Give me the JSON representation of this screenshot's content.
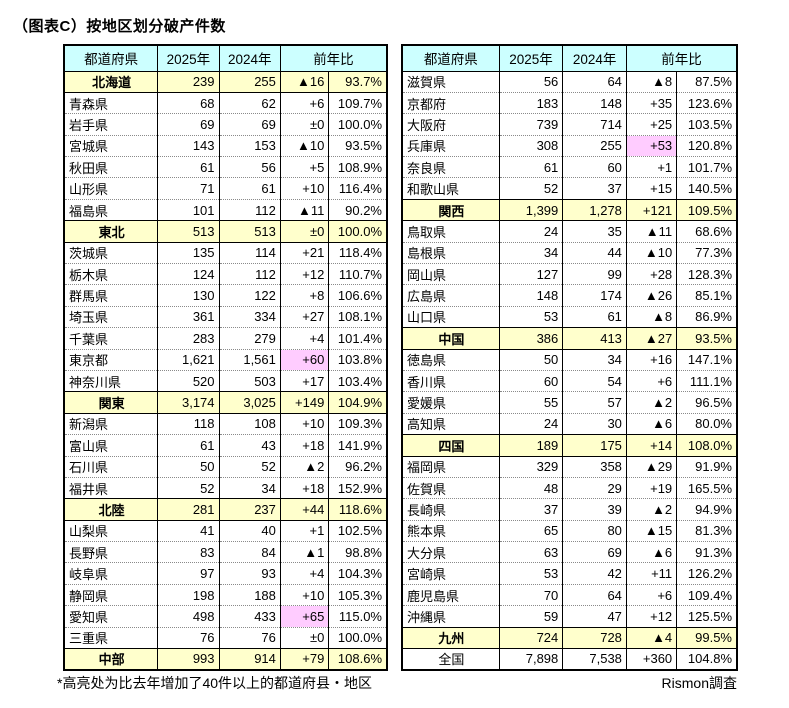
{
  "title": "（图表C）按地区划分破产件数",
  "footnote": "*高亮处为比去年增加了40件以上的都道府县・地区",
  "source": "Rismon調査",
  "colors": {
    "header_bg": "#CCFFFF",
    "region_row_bg": "#FFFFCC",
    "highlight_bg": "#FFCCFF",
    "border": "#000000"
  },
  "headers": {
    "prefecture": "都道府県",
    "y2025": "2025年",
    "y2024": "2024年",
    "yoy": "前年比"
  },
  "tables": [
    {
      "rows": [
        {
          "type": "region",
          "label": "北海道",
          "v2025": "239",
          "v2024": "255",
          "diff": "▲16",
          "pct": "93.7%",
          "hl": false
        },
        {
          "type": "pref",
          "label": "青森県",
          "v2025": "68",
          "v2024": "62",
          "diff": "+6",
          "pct": "109.7%",
          "hl": false
        },
        {
          "type": "pref",
          "label": "岩手県",
          "v2025": "69",
          "v2024": "69",
          "diff": "±0",
          "pct": "100.0%",
          "hl": false
        },
        {
          "type": "pref",
          "label": "宮城県",
          "v2025": "143",
          "v2024": "153",
          "diff": "▲10",
          "pct": "93.5%",
          "hl": false
        },
        {
          "type": "pref",
          "label": "秋田県",
          "v2025": "61",
          "v2024": "56",
          "diff": "+5",
          "pct": "108.9%",
          "hl": false
        },
        {
          "type": "pref",
          "label": "山形県",
          "v2025": "71",
          "v2024": "61",
          "diff": "+10",
          "pct": "116.4%",
          "hl": false
        },
        {
          "type": "pref",
          "label": "福島県",
          "v2025": "101",
          "v2024": "112",
          "diff": "▲11",
          "pct": "90.2%",
          "hl": false
        },
        {
          "type": "region",
          "label": "東北",
          "v2025": "513",
          "v2024": "513",
          "diff": "±0",
          "pct": "100.0%",
          "hl": false
        },
        {
          "type": "pref",
          "label": "茨城県",
          "v2025": "135",
          "v2024": "114",
          "diff": "+21",
          "pct": "118.4%",
          "hl": false
        },
        {
          "type": "pref",
          "label": "栃木県",
          "v2025": "124",
          "v2024": "112",
          "diff": "+12",
          "pct": "110.7%",
          "hl": false
        },
        {
          "type": "pref",
          "label": "群馬県",
          "v2025": "130",
          "v2024": "122",
          "diff": "+8",
          "pct": "106.6%",
          "hl": false
        },
        {
          "type": "pref",
          "label": "埼玉県",
          "v2025": "361",
          "v2024": "334",
          "diff": "+27",
          "pct": "108.1%",
          "hl": false
        },
        {
          "type": "pref",
          "label": "千葉県",
          "v2025": "283",
          "v2024": "279",
          "diff": "+4",
          "pct": "101.4%",
          "hl": false
        },
        {
          "type": "pref",
          "label": "東京都",
          "v2025": "1,621",
          "v2024": "1,561",
          "diff": "+60",
          "pct": "103.8%",
          "hl": true
        },
        {
          "type": "pref",
          "label": "神奈川県",
          "v2025": "520",
          "v2024": "503",
          "diff": "+17",
          "pct": "103.4%",
          "hl": false
        },
        {
          "type": "region",
          "label": "関東",
          "v2025": "3,174",
          "v2024": "3,025",
          "diff": "+149",
          "pct": "104.9%",
          "hl": true
        },
        {
          "type": "pref",
          "label": "新潟県",
          "v2025": "118",
          "v2024": "108",
          "diff": "+10",
          "pct": "109.3%",
          "hl": false
        },
        {
          "type": "pref",
          "label": "富山県",
          "v2025": "61",
          "v2024": "43",
          "diff": "+18",
          "pct": "141.9%",
          "hl": false
        },
        {
          "type": "pref",
          "label": "石川県",
          "v2025": "50",
          "v2024": "52",
          "diff": "▲2",
          "pct": "96.2%",
          "hl": false
        },
        {
          "type": "pref",
          "label": "福井県",
          "v2025": "52",
          "v2024": "34",
          "diff": "+18",
          "pct": "152.9%",
          "hl": false
        },
        {
          "type": "region",
          "label": "北陸",
          "v2025": "281",
          "v2024": "237",
          "diff": "+44",
          "pct": "118.6%",
          "hl": true
        },
        {
          "type": "pref",
          "label": "山梨県",
          "v2025": "41",
          "v2024": "40",
          "diff": "+1",
          "pct": "102.5%",
          "hl": false
        },
        {
          "type": "pref",
          "label": "長野県",
          "v2025": "83",
          "v2024": "84",
          "diff": "▲1",
          "pct": "98.8%",
          "hl": false
        },
        {
          "type": "pref",
          "label": "岐阜県",
          "v2025": "97",
          "v2024": "93",
          "diff": "+4",
          "pct": "104.3%",
          "hl": false
        },
        {
          "type": "pref",
          "label": "静岡県",
          "v2025": "198",
          "v2024": "188",
          "diff": "+10",
          "pct": "105.3%",
          "hl": false
        },
        {
          "type": "pref",
          "label": "愛知県",
          "v2025": "498",
          "v2024": "433",
          "diff": "+65",
          "pct": "115.0%",
          "hl": true
        },
        {
          "type": "pref",
          "label": "三重県",
          "v2025": "76",
          "v2024": "76",
          "diff": "±0",
          "pct": "100.0%",
          "hl": false
        },
        {
          "type": "region",
          "label": "中部",
          "v2025": "993",
          "v2024": "914",
          "diff": "+79",
          "pct": "108.6%",
          "hl": true
        }
      ]
    },
    {
      "rows": [
        {
          "type": "pref",
          "label": "滋賀県",
          "v2025": "56",
          "v2024": "64",
          "diff": "▲8",
          "pct": "87.5%",
          "hl": false
        },
        {
          "type": "pref",
          "label": "京都府",
          "v2025": "183",
          "v2024": "148",
          "diff": "+35",
          "pct": "123.6%",
          "hl": false
        },
        {
          "type": "pref",
          "label": "大阪府",
          "v2025": "739",
          "v2024": "714",
          "diff": "+25",
          "pct": "103.5%",
          "hl": false
        },
        {
          "type": "pref",
          "label": "兵庫県",
          "v2025": "308",
          "v2024": "255",
          "diff": "+53",
          "pct": "120.8%",
          "hl": true
        },
        {
          "type": "pref",
          "label": "奈良県",
          "v2025": "61",
          "v2024": "60",
          "diff": "+1",
          "pct": "101.7%",
          "hl": false
        },
        {
          "type": "pref",
          "label": "和歌山県",
          "v2025": "52",
          "v2024": "37",
          "diff": "+15",
          "pct": "140.5%",
          "hl": false
        },
        {
          "type": "region",
          "label": "関西",
          "v2025": "1,399",
          "v2024": "1,278",
          "diff": "+121",
          "pct": "109.5%",
          "hl": true
        },
        {
          "type": "pref",
          "label": "鳥取県",
          "v2025": "24",
          "v2024": "35",
          "diff": "▲11",
          "pct": "68.6%",
          "hl": false
        },
        {
          "type": "pref",
          "label": "島根県",
          "v2025": "34",
          "v2024": "44",
          "diff": "▲10",
          "pct": "77.3%",
          "hl": false
        },
        {
          "type": "pref",
          "label": "岡山県",
          "v2025": "127",
          "v2024": "99",
          "diff": "+28",
          "pct": "128.3%",
          "hl": false
        },
        {
          "type": "pref",
          "label": "広島県",
          "v2025": "148",
          "v2024": "174",
          "diff": "▲26",
          "pct": "85.1%",
          "hl": false
        },
        {
          "type": "pref",
          "label": "山口県",
          "v2025": "53",
          "v2024": "61",
          "diff": "▲8",
          "pct": "86.9%",
          "hl": false
        },
        {
          "type": "region",
          "label": "中国",
          "v2025": "386",
          "v2024": "413",
          "diff": "▲27",
          "pct": "93.5%",
          "hl": false
        },
        {
          "type": "pref",
          "label": "徳島県",
          "v2025": "50",
          "v2024": "34",
          "diff": "+16",
          "pct": "147.1%",
          "hl": false
        },
        {
          "type": "pref",
          "label": "香川県",
          "v2025": "60",
          "v2024": "54",
          "diff": "+6",
          "pct": "111.1%",
          "hl": false
        },
        {
          "type": "pref",
          "label": "愛媛県",
          "v2025": "55",
          "v2024": "57",
          "diff": "▲2",
          "pct": "96.5%",
          "hl": false
        },
        {
          "type": "pref",
          "label": "高知県",
          "v2025": "24",
          "v2024": "30",
          "diff": "▲6",
          "pct": "80.0%",
          "hl": false
        },
        {
          "type": "region",
          "label": "四国",
          "v2025": "189",
          "v2024": "175",
          "diff": "+14",
          "pct": "108.0%",
          "hl": false
        },
        {
          "type": "pref",
          "label": "福岡県",
          "v2025": "329",
          "v2024": "358",
          "diff": "▲29",
          "pct": "91.9%",
          "hl": false
        },
        {
          "type": "pref",
          "label": "佐賀県",
          "v2025": "48",
          "v2024": "29",
          "diff": "+19",
          "pct": "165.5%",
          "hl": false
        },
        {
          "type": "pref",
          "label": "長崎県",
          "v2025": "37",
          "v2024": "39",
          "diff": "▲2",
          "pct": "94.9%",
          "hl": false
        },
        {
          "type": "pref",
          "label": "熊本県",
          "v2025": "65",
          "v2024": "80",
          "diff": "▲15",
          "pct": "81.3%",
          "hl": false
        },
        {
          "type": "pref",
          "label": "大分県",
          "v2025": "63",
          "v2024": "69",
          "diff": "▲6",
          "pct": "91.3%",
          "hl": false
        },
        {
          "type": "pref",
          "label": "宮崎県",
          "v2025": "53",
          "v2024": "42",
          "diff": "+11",
          "pct": "126.2%",
          "hl": false
        },
        {
          "type": "pref",
          "label": "鹿児島県",
          "v2025": "70",
          "v2024": "64",
          "diff": "+6",
          "pct": "109.4%",
          "hl": false
        },
        {
          "type": "pref",
          "label": "沖縄県",
          "v2025": "59",
          "v2024": "47",
          "diff": "+12",
          "pct": "125.5%",
          "hl": false
        },
        {
          "type": "region",
          "label": "九州",
          "v2025": "724",
          "v2024": "728",
          "diff": "▲4",
          "pct": "99.5%",
          "hl": false
        },
        {
          "type": "total",
          "label": "全国",
          "v2025": "7,898",
          "v2024": "7,538",
          "diff": "+360",
          "pct": "104.8%",
          "hl": false
        }
      ]
    }
  ]
}
